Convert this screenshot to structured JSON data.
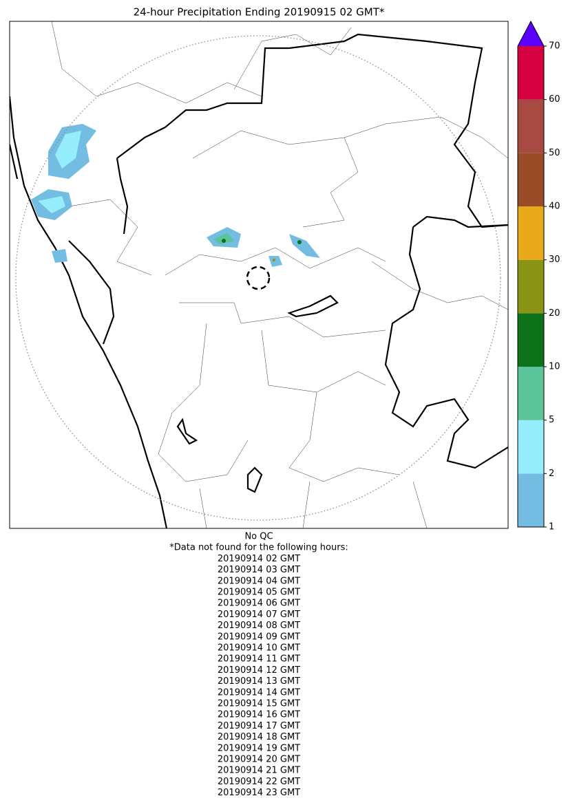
{
  "map": {
    "title": "24-hour Precipitation Ending 20190915 02 GMT*",
    "colorbar": {
      "ticks": [
        1,
        2,
        5,
        10,
        20,
        30,
        40,
        50,
        60,
        70
      ],
      "colors": [
        "#74bde2",
        "#96eefc",
        "#5cc49a",
        "#0e721a",
        "#8a9414",
        "#e8a91a",
        "#9a4c28",
        "#a64a42",
        "#d4003f"
      ],
      "extend_color": "#5a00ff"
    }
  },
  "notes": {
    "qc": "No QC",
    "missing_header": "*Data not found for the following hours:",
    "missing_hours": [
      "20190914 02 GMT",
      "20190914 03 GMT",
      "20190914 04 GMT",
      "20190914 05 GMT",
      "20190914 06 GMT",
      "20190914 07 GMT",
      "20190914 08 GMT",
      "20190914 09 GMT",
      "20190914 10 GMT",
      "20190914 11 GMT",
      "20190914 12 GMT",
      "20190914 13 GMT",
      "20190914 14 GMT",
      "20190914 15 GMT",
      "20190914 16 GMT",
      "20190914 17 GMT",
      "20190914 18 GMT",
      "20190914 19 GMT",
      "20190914 20 GMT",
      "20190914 21 GMT",
      "20190914 22 GMT",
      "20190914 23 GMT"
    ]
  }
}
